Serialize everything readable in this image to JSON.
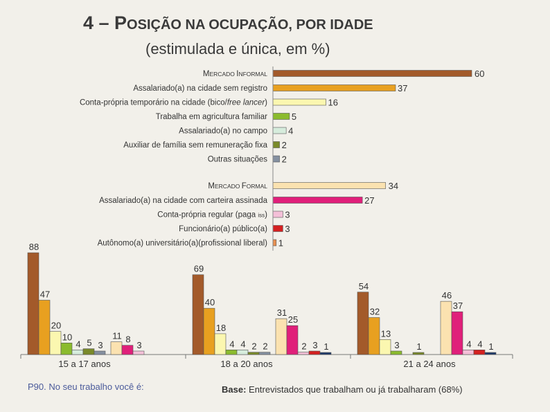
{
  "title": {
    "main_prefix": "4 – P",
    "main_smallcaps": "osição na ocupação, por idade",
    "subtitle": "(estimulada e única, em %)"
  },
  "chart_data": [
    {
      "type": "bar",
      "orientation": "horizontal",
      "groups": [
        {
          "name": "Mercado Informal",
          "header_prefix": "M",
          "header_rest_a": "ercado ",
          "header_rest_b": "I",
          "header_rest_c": "nformal",
          "header_value": 60,
          "header_color": "#a35a2a",
          "items": [
            {
              "label": "Assalariado(a) na cidade sem registro",
              "value": 37,
              "color": "#e8a020"
            },
            {
              "label_a": "Conta-própria temporário na cidade (bico/",
              "label_b": "free lancer",
              "label_c": ")",
              "value": 16,
              "color": "#fbf7b0"
            },
            {
              "label": "Trabalha em agricultura familiar",
              "value": 5,
              "color": "#8bbb2e"
            },
            {
              "label": "Assalariado(a) no campo",
              "value": 4,
              "color": "#d6ecdc"
            },
            {
              "label": "Auxiliar de família sem remuneração fixa",
              "value": 2,
              "color": "#7a8a2a"
            },
            {
              "label": "Outras situações",
              "value": 2,
              "color": "#8590a0"
            }
          ]
        },
        {
          "name": "Mercado Formal",
          "header_prefix": "M",
          "header_rest_a": "ercado ",
          "header_rest_b": "F",
          "header_rest_c": "ormal",
          "header_value": 34,
          "header_color": "#fbe2b0",
          "items": [
            {
              "label": "Assalariado(a) na cidade com carteira assinada",
              "value": 27,
              "color": "#e0207a"
            },
            {
              "label": "Conta-própria regular (paga ",
              "label_small": "ISS",
              "label_end": ")",
              "value": 3,
              "color": "#f4c0d8"
            },
            {
              "label": "Funcionário(a) público(a)",
              "value": 3,
              "color": "#d42020"
            },
            {
              "label": "Autônomo(a) universitário(a)(profissional liberal)",
              "value": 1,
              "color": "#e89050"
            }
          ]
        }
      ]
    },
    {
      "type": "bar",
      "orientation": "vertical",
      "categories": [
        "15 a 17 anos",
        "18 a 20 anos",
        "21 a 24 anos"
      ],
      "series": [
        {
          "name": "Mercado Informal",
          "color": "#a35a2a",
          "values": [
            88,
            69,
            54
          ]
        },
        {
          "name": "Assalariado(a) na cidade sem registro",
          "color": "#e8a020",
          "values": [
            47,
            40,
            32
          ]
        },
        {
          "name": "Conta-própria temporário",
          "color": "#fbf7b0",
          "values": [
            20,
            18,
            13
          ]
        },
        {
          "name": "Trabalha em agricultura familiar",
          "color": "#8bbb2e",
          "values": [
            10,
            4,
            3
          ]
        },
        {
          "name": "Assalariado(a) no campo",
          "color": "#d6ecdc",
          "values": [
            4,
            4,
            null
          ]
        },
        {
          "name": "Auxiliar de família",
          "color": "#7a8a2a",
          "values": [
            5,
            2,
            1
          ]
        },
        {
          "name": "Outras situações",
          "color": "#8590a0",
          "values": [
            3,
            2,
            null
          ]
        },
        {
          "name": "Mercado Formal",
          "color": "#fbe2b0",
          "values": [
            11,
            31,
            46
          ]
        },
        {
          "name": "Assalariado(a) com carteira",
          "color": "#e0207a",
          "values": [
            8,
            25,
            37
          ]
        },
        {
          "name": "Conta-própria regular",
          "color": "#f4c0d8",
          "values": [
            3,
            2,
            4
          ]
        },
        {
          "name": "Funcionário(a) público(a)",
          "color": "#d42020",
          "values": [
            null,
            3,
            4
          ]
        },
        {
          "name": "Autônomo(a) universitário(a)",
          "color": "#1f3a6a",
          "values": [
            null,
            1,
            1
          ]
        }
      ],
      "ylim": [
        0,
        100
      ]
    }
  ],
  "footer": {
    "question": "P90. No seu trabalho você é:",
    "base_bold": "Base:",
    "base_text": " Entrevistados que trabalham ou já trabalharam (68%)"
  }
}
